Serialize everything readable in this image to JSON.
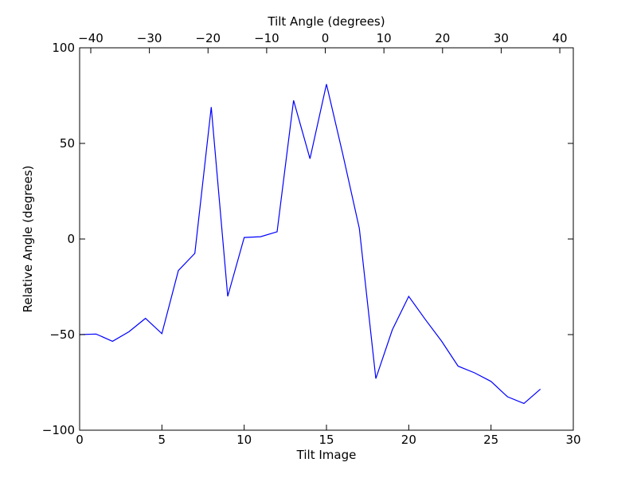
{
  "chart_data": {
    "type": "line",
    "xlabel": "Tilt Image",
    "ylabel": "Relative Angle (degrees)",
    "top_xlabel": "Tilt Angle (degrees)",
    "xlim": [
      0,
      30
    ],
    "ylim": [
      -100,
      100
    ],
    "top_xlim": [
      -41.9,
      42.3
    ],
    "x_ticks": [
      0,
      5,
      10,
      15,
      20,
      25,
      30
    ],
    "x_tick_labels": [
      "0",
      "5",
      "10",
      "15",
      "20",
      "25",
      "30"
    ],
    "y_ticks": [
      -100,
      -50,
      0,
      50,
      100
    ],
    "y_tick_labels": [
      "−100",
      "−50",
      "0",
      "50",
      "100"
    ],
    "top_x_ticks": [
      -40,
      -30,
      -20,
      -10,
      0,
      10,
      20,
      30,
      40
    ],
    "top_x_tick_labels": [
      "−40",
      "−30",
      "−20",
      "−10",
      "0",
      "10",
      "20",
      "30",
      "40"
    ],
    "grid": false,
    "series": [
      {
        "color": "#0000ff",
        "x": [
          0,
          1,
          2,
          3,
          4,
          5,
          6,
          7,
          8,
          9,
          10,
          11,
          12,
          13,
          14,
          15,
          16,
          17,
          18,
          19,
          20,
          21,
          22,
          23,
          24,
          25,
          26,
          27,
          28
        ],
        "y": [
          -50,
          -49.7,
          -53.5,
          -48.5,
          -41.5,
          -49.5,
          -16.5,
          -7.5,
          69,
          -30,
          0.8,
          1.2,
          3.8,
          72.5,
          42,
          81,
          44,
          5.5,
          -73,
          -47.5,
          -30,
          -42,
          -53.5,
          -66.5,
          -70,
          -74.5,
          -82.5,
          -86,
          -78.5
        ]
      }
    ]
  }
}
